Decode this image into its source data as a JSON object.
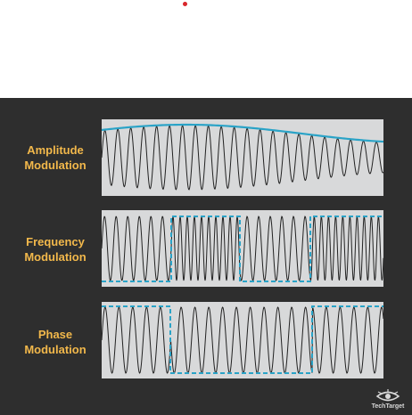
{
  "rows": [
    {
      "label_line1": "Amplitude",
      "label_line2": "Modulation"
    },
    {
      "label_line1": "Frequency",
      "label_line2": "Modulation"
    },
    {
      "label_line1": "Phase",
      "label_line2": "Modulation"
    }
  ],
  "brand": {
    "name": "TechTarget"
  },
  "colors": {
    "panel_bg": "#2e2e2e",
    "label": "#f2b84b",
    "plot_bg": "#d8d9da",
    "modulating_signal": "#2aa3c7",
    "carrier": "#222222",
    "accent_dot": "#d9262b"
  },
  "icons": {
    "logo": "techtarget-eye-icon"
  }
}
